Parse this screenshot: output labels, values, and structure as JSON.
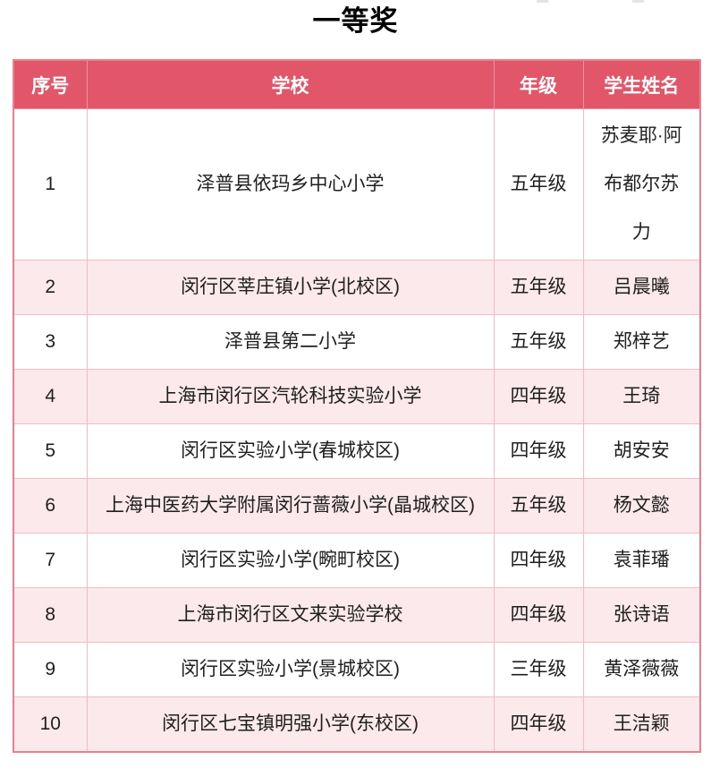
{
  "page": {
    "title": "一等奖"
  },
  "table": {
    "headers": {
      "no": "序号",
      "school": "学校",
      "grade": "年级",
      "student": "学生姓名"
    },
    "rows": [
      {
        "no": "1",
        "school": "泽普县依玛乡中心小学",
        "grade": "五年级",
        "student": "苏麦耶·阿布都尔苏力"
      },
      {
        "no": "2",
        "school": "闵行区莘庄镇小学(北校区)",
        "grade": "五年级",
        "student": "吕晨曦"
      },
      {
        "no": "3",
        "school": "泽普县第二小学",
        "grade": "五年级",
        "student": "郑梓艺"
      },
      {
        "no": "4",
        "school": "上海市闵行区汽轮科技实验小学",
        "grade": "四年级",
        "student": "王琦"
      },
      {
        "no": "5",
        "school": "闵行区实验小学(春城校区)",
        "grade": "四年级",
        "student": "胡安安"
      },
      {
        "no": "6",
        "school": "上海中医药大学附属闵行蔷薇小学(晶城校区)",
        "grade": "五年级",
        "student": "杨文懿"
      },
      {
        "no": "7",
        "school": "闵行区实验小学(畹町校区)",
        "grade": "四年级",
        "student": "袁菲璠"
      },
      {
        "no": "8",
        "school": "上海市闵行区文来实验学校",
        "grade": "四年级",
        "student": "张诗语"
      },
      {
        "no": "9",
        "school": "闵行区实验小学(景城校区)",
        "grade": "三年级",
        "student": "黄泽薇薇"
      },
      {
        "no": "10",
        "school": "闵行区七宝镇明强小学(东校区)",
        "grade": "四年级",
        "student": "王洁颖"
      }
    ]
  },
  "colors": {
    "header_bg": "#e2566a",
    "header_text": "#ffffff",
    "row_alt_bg": "#fce9ec",
    "border_inner": "#f5bac5",
    "border_outer": "#e8808f",
    "body_text": "#1f1f1f"
  }
}
